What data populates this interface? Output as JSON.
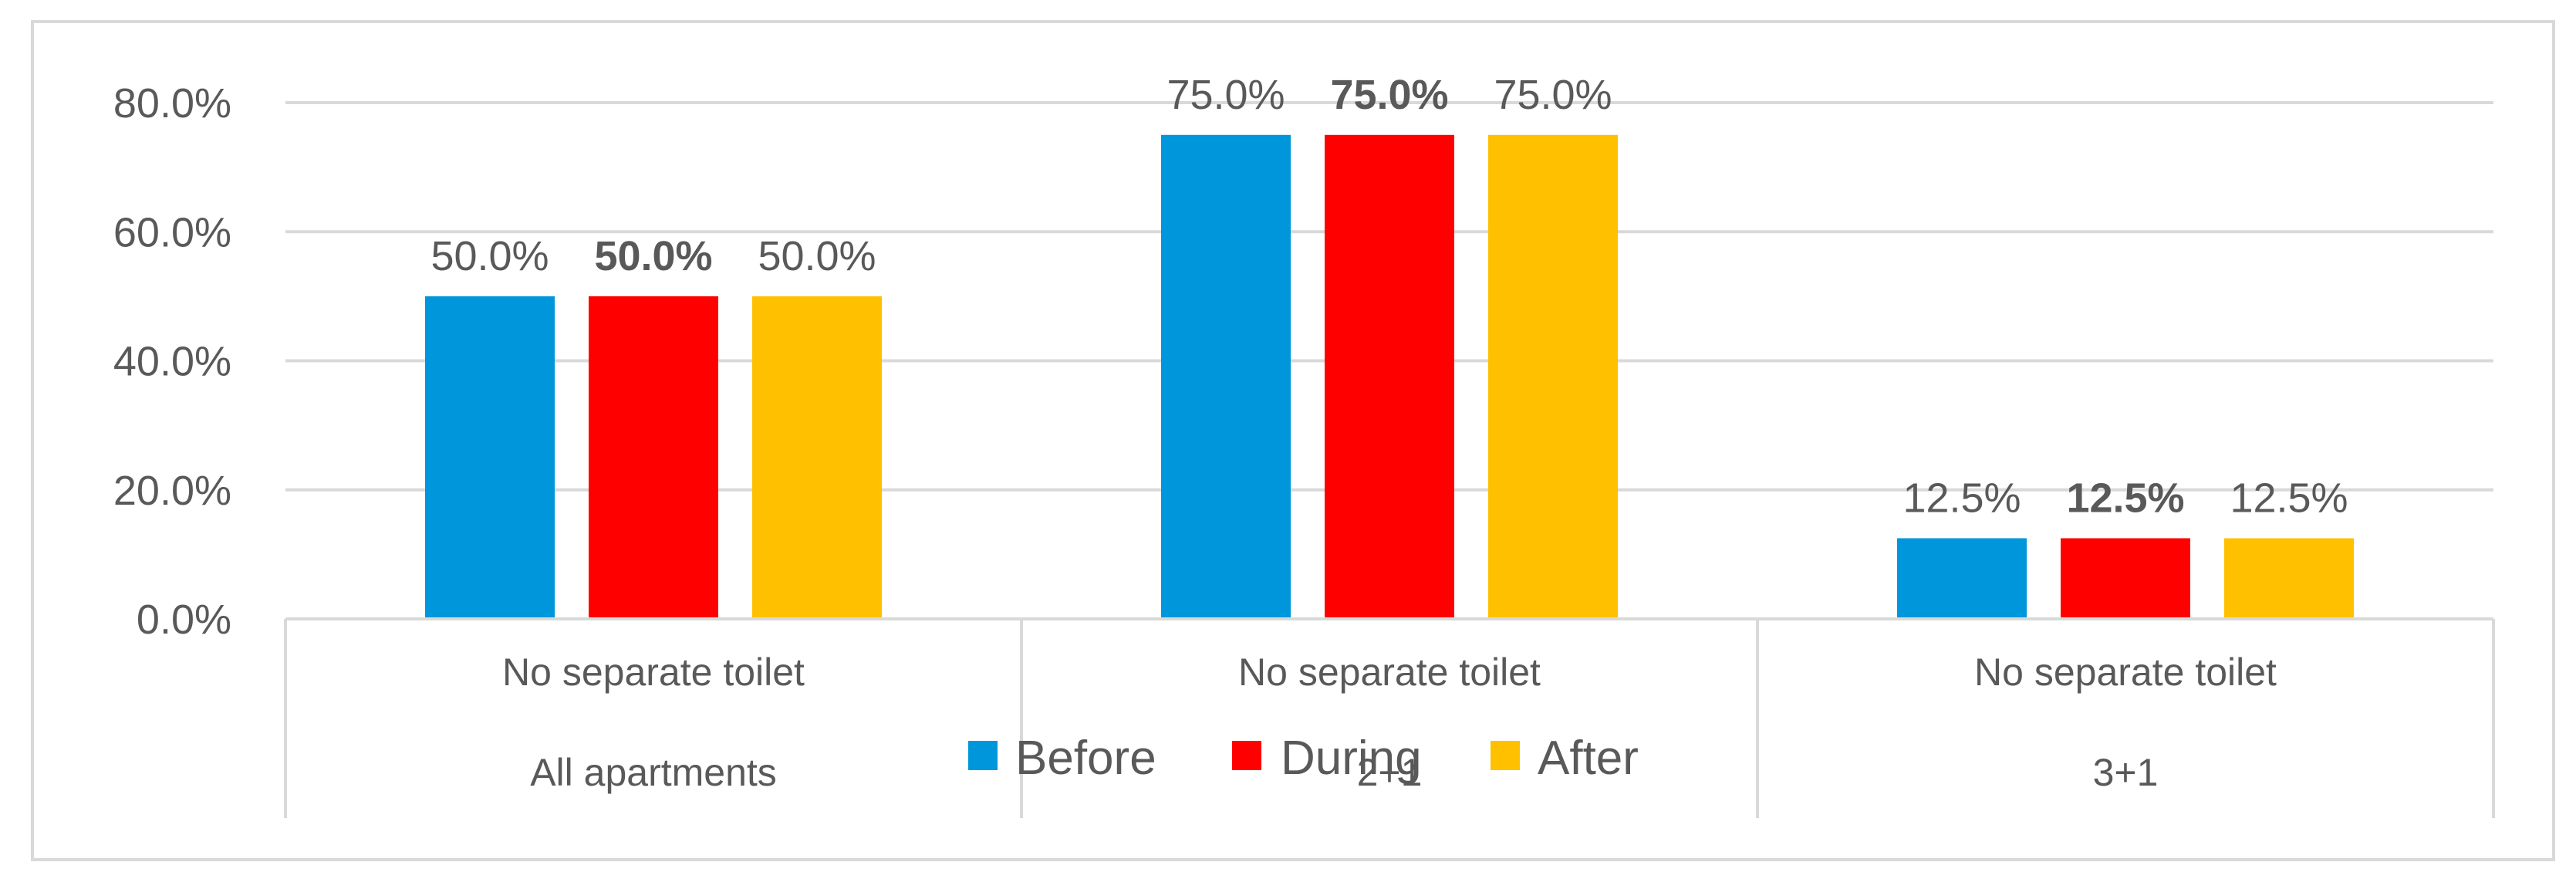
{
  "chart_data": {
    "type": "bar",
    "categories": [
      [
        "No separate toilet",
        "All apartments"
      ],
      [
        "No separate toilet",
        "2+1"
      ],
      [
        "No separate toilet",
        "3+1"
      ]
    ],
    "series": [
      {
        "name": "Before",
        "color": "#0096DB",
        "values": [
          50.0,
          75.0,
          12.5
        ],
        "labels": [
          "50.0%",
          "75.0%",
          "12.5%"
        ]
      },
      {
        "name": "During",
        "color": "#FF0000",
        "values": [
          50.0,
          75.0,
          12.5
        ],
        "labels": [
          "50.0%",
          "75.0%",
          "12.5%"
        ]
      },
      {
        "name": "After",
        "color": "#FFC000",
        "values": [
          50.0,
          75.0,
          12.5
        ],
        "labels": [
          "50.0%",
          "75.0%",
          "12.5%"
        ]
      }
    ],
    "bold_label_series": "During",
    "yticks": [
      "0.0%",
      "20.0%",
      "40.0%",
      "60.0%",
      "80.0%"
    ],
    "ylim": [
      0,
      80
    ],
    "grid": true,
    "legend_position": "bottom"
  }
}
